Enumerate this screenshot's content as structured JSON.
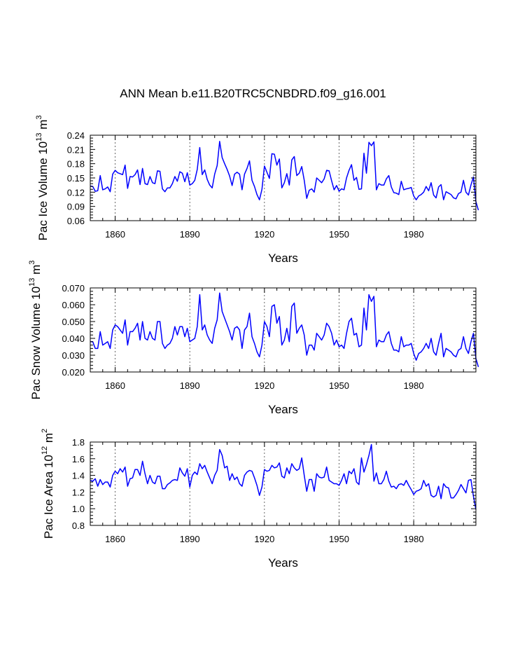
{
  "figure_title": "ANN Mean b.e11.B20TRC5CNBDRD.f09_g16.001",
  "colors": {
    "series": "#0000ff",
    "axis": "#000000",
    "gridline": "#444444",
    "background": "#ffffff"
  },
  "chart_data": [
    {
      "type": "line",
      "id": "ice-volume",
      "ylabel": {
        "text": "Pac Ice Volume 10",
        "exp": "13",
        "unit": " m",
        "unit_exp": "3"
      },
      "xlabel": "Years",
      "xlim": [
        1850,
        2005
      ],
      "ylim": [
        0.06,
        0.24
      ],
      "xticks": [
        1860,
        1890,
        1920,
        1950,
        1980
      ],
      "yticks": [
        0.06,
        0.09,
        0.12,
        0.15,
        0.18,
        0.21,
        0.24
      ],
      "ytick_labels": [
        "0.06",
        "0.09",
        "0.12",
        "0.15",
        "0.18",
        "0.21",
        "0.24"
      ],
      "vlines": [
        1860,
        1890,
        1920,
        1950,
        1980
      ],
      "x_start": 1850,
      "values": [
        0.133,
        0.132,
        0.122,
        0.123,
        0.155,
        0.125,
        0.127,
        0.131,
        0.121,
        0.158,
        0.166,
        0.161,
        0.159,
        0.157,
        0.177,
        0.128,
        0.153,
        0.152,
        0.157,
        0.167,
        0.136,
        0.17,
        0.138,
        0.136,
        0.153,
        0.14,
        0.138,
        0.165,
        0.164,
        0.127,
        0.121,
        0.129,
        0.129,
        0.138,
        0.153,
        0.143,
        0.163,
        0.16,
        0.142,
        0.161,
        0.135,
        0.138,
        0.145,
        0.168,
        0.214,
        0.157,
        0.167,
        0.147,
        0.135,
        0.129,
        0.158,
        0.176,
        0.227,
        0.193,
        0.18,
        0.168,
        0.154,
        0.134,
        0.158,
        0.162,
        0.158,
        0.125,
        0.158,
        0.17,
        0.186,
        0.145,
        0.132,
        0.115,
        0.104,
        0.126,
        0.175,
        0.162,
        0.149,
        0.201,
        0.2,
        0.177,
        0.19,
        0.129,
        0.14,
        0.159,
        0.135,
        0.188,
        0.195,
        0.155,
        0.16,
        0.174,
        0.145,
        0.107,
        0.124,
        0.127,
        0.12,
        0.15,
        0.145,
        0.14,
        0.148,
        0.166,
        0.165,
        0.144,
        0.125,
        0.134,
        0.122,
        0.127,
        0.125,
        0.15,
        0.166,
        0.178,
        0.145,
        0.151,
        0.126,
        0.127,
        0.202,
        0.16,
        0.225,
        0.218,
        0.226,
        0.125,
        0.138,
        0.135,
        0.135,
        0.148,
        0.155,
        0.131,
        0.119,
        0.118,
        0.115,
        0.143,
        0.125,
        0.127,
        0.128,
        0.13,
        0.112,
        0.104,
        0.112,
        0.115,
        0.12,
        0.132,
        0.123,
        0.14,
        0.114,
        0.108,
        0.131,
        0.136,
        0.104,
        0.121,
        0.118,
        0.115,
        0.108,
        0.106,
        0.117,
        0.12,
        0.145,
        0.12,
        0.114,
        0.135,
        0.152,
        0.1,
        0.082
      ]
    },
    {
      "type": "line",
      "id": "snow-volume",
      "ylabel": {
        "text": "Pac Snow Volume 10",
        "exp": "13",
        "unit": " m",
        "unit_exp": "3"
      },
      "xlabel": "Years",
      "xlim": [
        1850,
        2005
      ],
      "ylim": [
        0.02,
        0.07
      ],
      "xticks": [
        1860,
        1890,
        1920,
        1950,
        1980
      ],
      "yticks": [
        0.02,
        0.03,
        0.04,
        0.05,
        0.06,
        0.07
      ],
      "ytick_labels": [
        "0.020",
        "0.030",
        "0.040",
        "0.050",
        "0.060",
        "0.070"
      ],
      "vlines": [
        1860,
        1890,
        1920,
        1950,
        1980
      ],
      "x_start": 1850,
      "values": [
        0.038,
        0.038,
        0.034,
        0.034,
        0.044,
        0.036,
        0.037,
        0.038,
        0.034,
        0.045,
        0.048,
        0.047,
        0.045,
        0.043,
        0.051,
        0.036,
        0.044,
        0.044,
        0.046,
        0.049,
        0.039,
        0.05,
        0.04,
        0.039,
        0.044,
        0.04,
        0.039,
        0.05,
        0.05,
        0.037,
        0.034,
        0.036,
        0.037,
        0.04,
        0.047,
        0.042,
        0.047,
        0.047,
        0.041,
        0.046,
        0.038,
        0.039,
        0.04,
        0.047,
        0.066,
        0.045,
        0.048,
        0.042,
        0.039,
        0.037,
        0.046,
        0.051,
        0.067,
        0.056,
        0.052,
        0.048,
        0.044,
        0.039,
        0.046,
        0.047,
        0.045,
        0.034,
        0.045,
        0.047,
        0.055,
        0.041,
        0.037,
        0.032,
        0.029,
        0.036,
        0.05,
        0.047,
        0.041,
        0.059,
        0.06,
        0.049,
        0.053,
        0.036,
        0.039,
        0.046,
        0.038,
        0.059,
        0.061,
        0.043,
        0.046,
        0.048,
        0.042,
        0.03,
        0.036,
        0.036,
        0.033,
        0.043,
        0.041,
        0.039,
        0.042,
        0.049,
        0.047,
        0.043,
        0.036,
        0.039,
        0.035,
        0.036,
        0.034,
        0.043,
        0.05,
        0.052,
        0.042,
        0.043,
        0.035,
        0.036,
        0.058,
        0.045,
        0.066,
        0.062,
        0.065,
        0.035,
        0.039,
        0.038,
        0.038,
        0.042,
        0.044,
        0.037,
        0.033,
        0.033,
        0.032,
        0.041,
        0.035,
        0.036,
        0.036,
        0.037,
        0.031,
        0.027,
        0.031,
        0.032,
        0.034,
        0.037,
        0.034,
        0.04,
        0.032,
        0.03,
        0.037,
        0.043,
        0.029,
        0.034,
        0.033,
        0.032,
        0.03,
        0.029,
        0.033,
        0.034,
        0.041,
        0.034,
        0.031,
        0.038,
        0.043,
        0.028,
        0.023
      ]
    },
    {
      "type": "line",
      "id": "ice-area",
      "ylabel": {
        "text": "Pac Ice Area 10",
        "exp": "12",
        "unit": " m",
        "unit_exp": "2"
      },
      "xlabel": "Years",
      "xlim": [
        1850,
        2005
      ],
      "ylim": [
        0.8,
        1.8
      ],
      "xticks": [
        1860,
        1890,
        1920,
        1950,
        1980
      ],
      "yticks": [
        0.8,
        1.0,
        1.2,
        1.4,
        1.6,
        1.8
      ],
      "ytick_labels": [
        "0.8",
        "1.0",
        "1.2",
        "1.4",
        "1.6",
        "1.8"
      ],
      "vlines": [
        1860,
        1890,
        1920,
        1950,
        1980
      ],
      "x_start": 1850,
      "values": [
        1.34,
        1.33,
        1.36,
        1.27,
        1.35,
        1.29,
        1.32,
        1.32,
        1.26,
        1.4,
        1.45,
        1.42,
        1.48,
        1.44,
        1.5,
        1.27,
        1.36,
        1.37,
        1.47,
        1.47,
        1.4,
        1.57,
        1.42,
        1.3,
        1.4,
        1.32,
        1.3,
        1.39,
        1.39,
        1.24,
        1.24,
        1.29,
        1.31,
        1.34,
        1.35,
        1.34,
        1.49,
        1.43,
        1.39,
        1.48,
        1.26,
        1.4,
        1.44,
        1.41,
        1.54,
        1.48,
        1.52,
        1.44,
        1.37,
        1.3,
        1.4,
        1.46,
        1.71,
        1.64,
        1.49,
        1.51,
        1.34,
        1.42,
        1.35,
        1.38,
        1.3,
        1.27,
        1.4,
        1.44,
        1.46,
        1.45,
        1.37,
        1.28,
        1.16,
        1.26,
        1.47,
        1.45,
        1.46,
        1.52,
        1.49,
        1.5,
        1.55,
        1.39,
        1.37,
        1.49,
        1.42,
        1.54,
        1.49,
        1.46,
        1.48,
        1.61,
        1.4,
        1.21,
        1.35,
        1.35,
        1.21,
        1.42,
        1.38,
        1.37,
        1.38,
        1.5,
        1.34,
        1.32,
        1.3,
        1.3,
        1.28,
        1.34,
        1.42,
        1.3,
        1.45,
        1.42,
        1.48,
        1.32,
        1.29,
        1.61,
        1.44,
        1.53,
        1.64,
        1.77,
        1.33,
        1.43,
        1.3,
        1.3,
        1.35,
        1.45,
        1.33,
        1.26,
        1.27,
        1.24,
        1.29,
        1.3,
        1.28,
        1.34,
        1.28,
        1.23,
        1.17,
        1.21,
        1.22,
        1.24,
        1.34,
        1.27,
        1.3,
        1.16,
        1.14,
        1.16,
        1.27,
        1.12,
        1.3,
        1.26,
        1.25,
        1.13,
        1.13,
        1.17,
        1.22,
        1.29,
        1.24,
        1.19,
        1.34,
        1.35,
        1.15,
        0.99
      ]
    }
  ]
}
